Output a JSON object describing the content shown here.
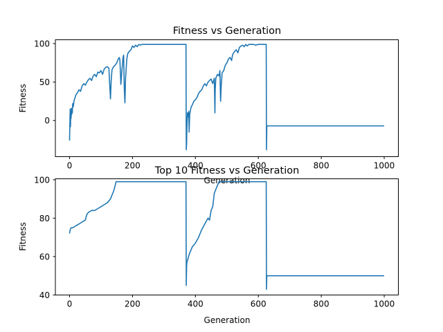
{
  "chart_data": [
    {
      "type": "line",
      "title": "Fitness vs Generation",
      "xlabel": "Generation",
      "ylabel": "Fitness",
      "xlim": [
        -45,
        1045
      ],
      "ylim": [
        -47,
        105
      ],
      "xticks": [
        0,
        200,
        400,
        600,
        800,
        1000
      ],
      "yticks": [
        0,
        50,
        100
      ],
      "grid": false,
      "color": "#1f77b4",
      "series": [
        {
          "x": [
            0,
            1,
            2,
            3,
            4,
            5,
            6,
            7,
            8,
            9,
            10,
            12,
            14,
            16,
            18,
            20,
            25,
            30,
            35,
            40,
            45,
            50,
            55,
            60,
            65,
            70,
            75,
            80,
            85,
            90,
            95,
            100,
            105,
            110,
            115,
            120,
            125,
            128,
            130,
            132,
            135,
            140,
            145,
            150,
            155,
            158,
            160,
            163,
            165,
            170,
            172,
            174,
            176,
            178,
            182,
            185,
            190,
            195,
            200,
            205,
            210,
            215,
            220,
            225,
            230,
            240,
            250,
            260,
            280,
            300,
            320,
            340,
            360,
            370,
            371,
            372,
            373,
            375,
            377,
            379,
            380,
            382,
            385,
            387,
            390,
            395,
            400,
            405,
            410,
            415,
            420,
            425,
            430,
            435,
            440,
            445,
            450,
            455,
            460,
            462,
            463,
            465,
            470,
            475,
            478,
            480,
            482,
            485,
            490,
            495,
            500,
            505,
            510,
            515,
            518,
            520,
            525,
            530,
            535,
            540,
            545,
            550,
            555,
            560,
            565,
            570,
            575,
            580,
            585,
            590,
            600,
            610,
            620,
            625,
            626,
            627,
            628,
            629,
            630,
            650,
            700,
            800,
            900,
            1000
          ],
          "y": [
            -26,
            -5,
            15,
            -8,
            12,
            3,
            16,
            8,
            15,
            10,
            22,
            18,
            25,
            28,
            30,
            33,
            36,
            40,
            38,
            45,
            48,
            46,
            50,
            53,
            55,
            52,
            58,
            60,
            57,
            63,
            62,
            65,
            60,
            67,
            69,
            70,
            68,
            45,
            28,
            50,
            66,
            70,
            72,
            75,
            80,
            82,
            79,
            47,
            58,
            82,
            85,
            40,
            23,
            55,
            80,
            87,
            90,
            92,
            97,
            95,
            98,
            96,
            99,
            98,
            99,
            99,
            99,
            99,
            99,
            99,
            99,
            99,
            99,
            99,
            -38,
            -30,
            -10,
            10,
            5,
            12,
            -15,
            8,
            15,
            18,
            20,
            25,
            27,
            30,
            35,
            38,
            40,
            45,
            48,
            45,
            50,
            52,
            54,
            48,
            55,
            10,
            40,
            55,
            60,
            58,
            65,
            25,
            45,
            62,
            65,
            72,
            75,
            80,
            82,
            78,
            85,
            87,
            90,
            92,
            88,
            95,
            97,
            98,
            96,
            99,
            97,
            99,
            99,
            99,
            99,
            98,
            99,
            99,
            99,
            99,
            -38,
            -7,
            -7,
            -7,
            -7,
            -7,
            -7,
            -7,
            -7,
            -7
          ]
        }
      ]
    },
    {
      "type": "line",
      "title": "Top 10 Fitness vs Generation",
      "xlabel": "Generation",
      "ylabel": "Fitness",
      "xlim": [
        -45,
        1045
      ],
      "ylim": [
        40,
        100.5
      ],
      "xticks": [
        0,
        200,
        400,
        600,
        800,
        1000
      ],
      "yticks": [
        40,
        60,
        80,
        100
      ],
      "grid": false,
      "color": "#1f77b4",
      "series": [
        {
          "x": [
            0,
            2,
            5,
            10,
            20,
            30,
            40,
            50,
            55,
            60,
            70,
            80,
            90,
            100,
            110,
            120,
            130,
            135,
            140,
            145,
            148,
            150,
            160,
            200,
            250,
            300,
            350,
            370,
            371,
            372,
            373,
            375,
            380,
            385,
            390,
            395,
            400,
            410,
            420,
            430,
            440,
            445,
            450,
            455,
            460,
            465,
            470,
            475,
            480,
            500,
            550,
            600,
            625,
            626,
            627,
            628,
            629,
            630,
            700,
            800,
            900,
            1000
          ],
          "y": [
            72,
            74,
            75,
            75,
            76,
            77,
            78,
            79,
            82,
            83,
            84,
            84,
            85,
            86,
            87,
            88,
            90,
            92,
            94,
            97,
            99,
            99,
            99,
            99,
            99,
            99,
            99,
            99,
            45,
            55,
            57,
            58,
            61,
            63,
            65,
            66,
            67,
            70,
            74,
            77,
            80,
            79,
            84,
            86,
            93,
            95,
            97,
            99,
            99,
            99,
            99,
            99,
            99,
            43,
            50,
            50,
            50,
            50,
            50,
            50,
            50,
            50
          ]
        }
      ]
    }
  ]
}
